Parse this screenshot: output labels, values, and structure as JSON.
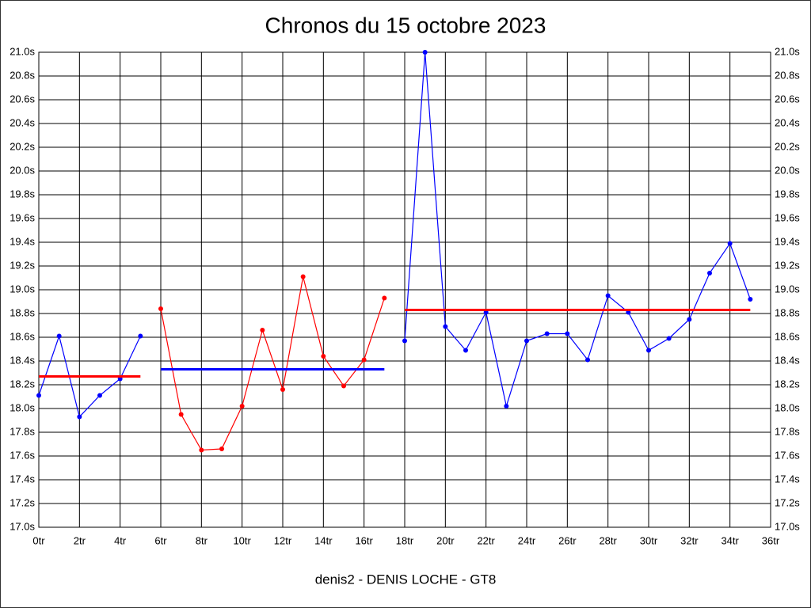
{
  "chart_data": {
    "type": "line",
    "title": "Chronos du 15 octobre 2023",
    "xlabel": "denis2 - DENIS LOCHE - GT8",
    "xlim": [
      0,
      36
    ],
    "ylim": [
      17.0,
      21.0
    ],
    "grid": true,
    "xticks": [
      {
        "value": 0,
        "label": "0tr"
      },
      {
        "value": 2,
        "label": "2tr"
      },
      {
        "value": 4,
        "label": "4tr"
      },
      {
        "value": 6,
        "label": "6tr"
      },
      {
        "value": 8,
        "label": "8tr"
      },
      {
        "value": 10,
        "label": "10tr"
      },
      {
        "value": 12,
        "label": "12tr"
      },
      {
        "value": 14,
        "label": "14tr"
      },
      {
        "value": 16,
        "label": "16tr"
      },
      {
        "value": 18,
        "label": "18tr"
      },
      {
        "value": 20,
        "label": "20tr"
      },
      {
        "value": 22,
        "label": "22tr"
      },
      {
        "value": 24,
        "label": "24tr"
      },
      {
        "value": 26,
        "label": "26tr"
      },
      {
        "value": 28,
        "label": "28tr"
      },
      {
        "value": 30,
        "label": "30tr"
      },
      {
        "value": 32,
        "label": "32tr"
      },
      {
        "value": 34,
        "label": "34tr"
      },
      {
        "value": 36,
        "label": "36tr"
      }
    ],
    "yticks": [
      {
        "value": 17.0,
        "label": "17.0s"
      },
      {
        "value": 17.2,
        "label": "17.2s"
      },
      {
        "value": 17.4,
        "label": "17.4s"
      },
      {
        "value": 17.6,
        "label": "17.6s"
      },
      {
        "value": 17.8,
        "label": "17.8s"
      },
      {
        "value": 18.0,
        "label": "18.0s"
      },
      {
        "value": 18.2,
        "label": "18.2s"
      },
      {
        "value": 18.4,
        "label": "18.4s"
      },
      {
        "value": 18.6,
        "label": "18.6s"
      },
      {
        "value": 18.8,
        "label": "18.8s"
      },
      {
        "value": 19.0,
        "label": "19.0s"
      },
      {
        "value": 19.2,
        "label": "19.2s"
      },
      {
        "value": 19.4,
        "label": "19.4s"
      },
      {
        "value": 19.6,
        "label": "19.6s"
      },
      {
        "value": 19.8,
        "label": "19.8s"
      },
      {
        "value": 20.0,
        "label": "20.0s"
      },
      {
        "value": 20.2,
        "label": "20.2s"
      },
      {
        "value": 20.4,
        "label": "20.4s"
      },
      {
        "value": 20.6,
        "label": "20.6s"
      },
      {
        "value": 20.8,
        "label": "20.8s"
      },
      {
        "value": 21.0,
        "label": "21.0s"
      }
    ],
    "series": [
      {
        "color": "#0000ff",
        "x": [
          0,
          1,
          2,
          3,
          4,
          5
        ],
        "values": [
          18.11,
          18.61,
          17.93,
          18.11,
          18.25,
          18.61
        ]
      },
      {
        "color": "#ff0000",
        "x": [
          6,
          7,
          8,
          9,
          10,
          11,
          12,
          13,
          14,
          15,
          16,
          17
        ],
        "values": [
          18.84,
          17.95,
          17.65,
          17.66,
          18.02,
          18.66,
          18.16,
          19.11,
          18.44,
          18.19,
          18.41,
          18.93
        ]
      },
      {
        "color": "#0000ff",
        "x": [
          18,
          19,
          20,
          21,
          22,
          23,
          24,
          25,
          26,
          27,
          28,
          29,
          30,
          31,
          32,
          33,
          34,
          35
        ],
        "values": [
          18.57,
          21.0,
          18.69,
          18.49,
          18.81,
          18.02,
          18.57,
          18.63,
          18.63,
          18.41,
          18.95,
          18.81,
          18.49,
          18.59,
          18.75,
          19.14,
          19.39,
          18.92
        ]
      }
    ],
    "means": [
      {
        "color": "#ff0000",
        "x": [
          0,
          5
        ],
        "value": 18.27
      },
      {
        "color": "#0000ff",
        "x": [
          6,
          17
        ],
        "value": 18.33
      },
      {
        "color": "#ff0000",
        "x": [
          18,
          35
        ],
        "value": 18.83
      }
    ]
  }
}
